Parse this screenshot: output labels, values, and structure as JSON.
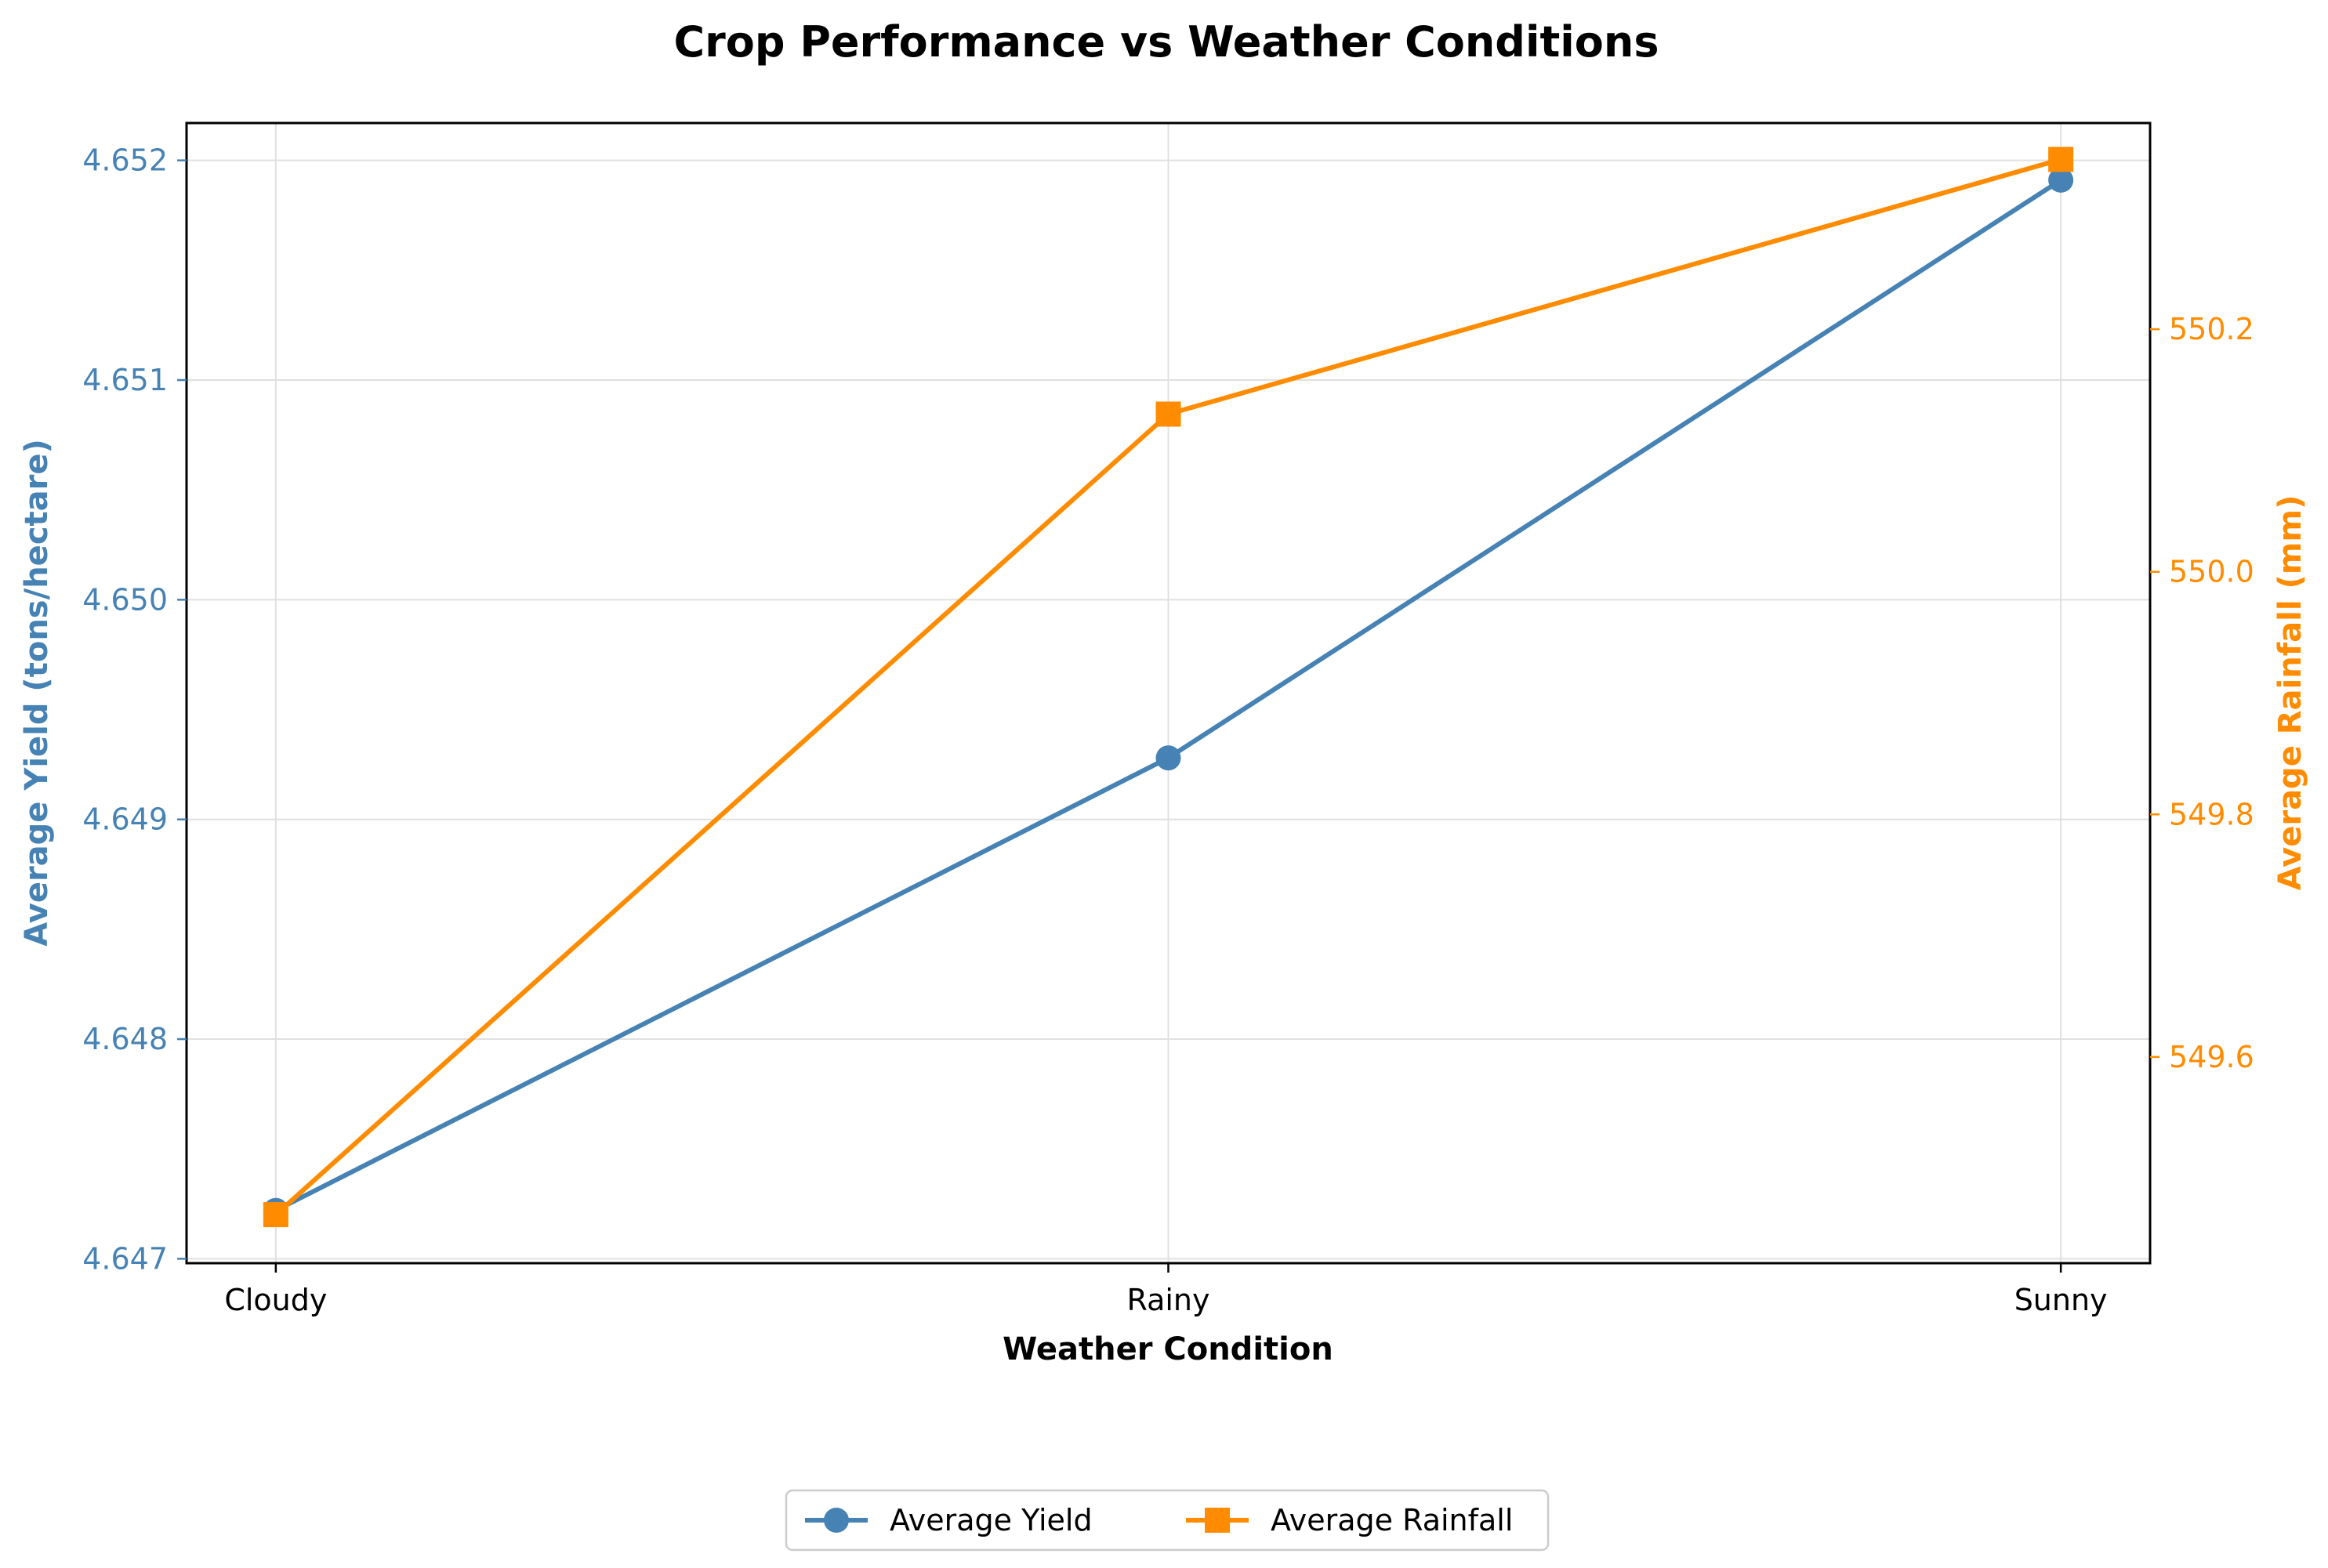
{
  "chart_data": {
    "type": "line",
    "title": "Crop Performance vs Weather Conditions",
    "xlabel": "Weather Condition",
    "ylabel_left": "Average Yield (tons/hectare)",
    "ylabel_right": "Average Rainfall (mm)",
    "categories": [
      "Cloudy",
      "Rainy",
      "Sunny"
    ],
    "grid": true,
    "legend_placement": "bottom-center",
    "y_left": {
      "ylim": [
        4.64698,
        4.65217
      ],
      "ticks": [
        4.647,
        4.648,
        4.649,
        4.65,
        4.651,
        4.652
      ],
      "tick_labels": [
        "4.647",
        "4.648",
        "4.649",
        "4.650",
        "4.651",
        "4.652"
      ],
      "color": "#4682b4"
    },
    "y_right": {
      "ylim": [
        549.43,
        550.37
      ],
      "ticks": [
        549.6,
        549.8,
        550.0,
        550.2
      ],
      "tick_labels": [
        "549.6",
        "549.8",
        "550.0",
        "550.2"
      ],
      "color": "#ff8c00"
    },
    "series": [
      {
        "name": "Average Yield",
        "axis": "left",
        "values": [
          4.64722,
          4.64928,
          4.65191
        ],
        "color": "#4682b4",
        "marker": "circle"
      },
      {
        "name": "Average Rainfall",
        "axis": "right",
        "values": [
          549.47,
          550.13,
          550.34
        ],
        "color": "#ff8c00",
        "marker": "square"
      }
    ]
  }
}
